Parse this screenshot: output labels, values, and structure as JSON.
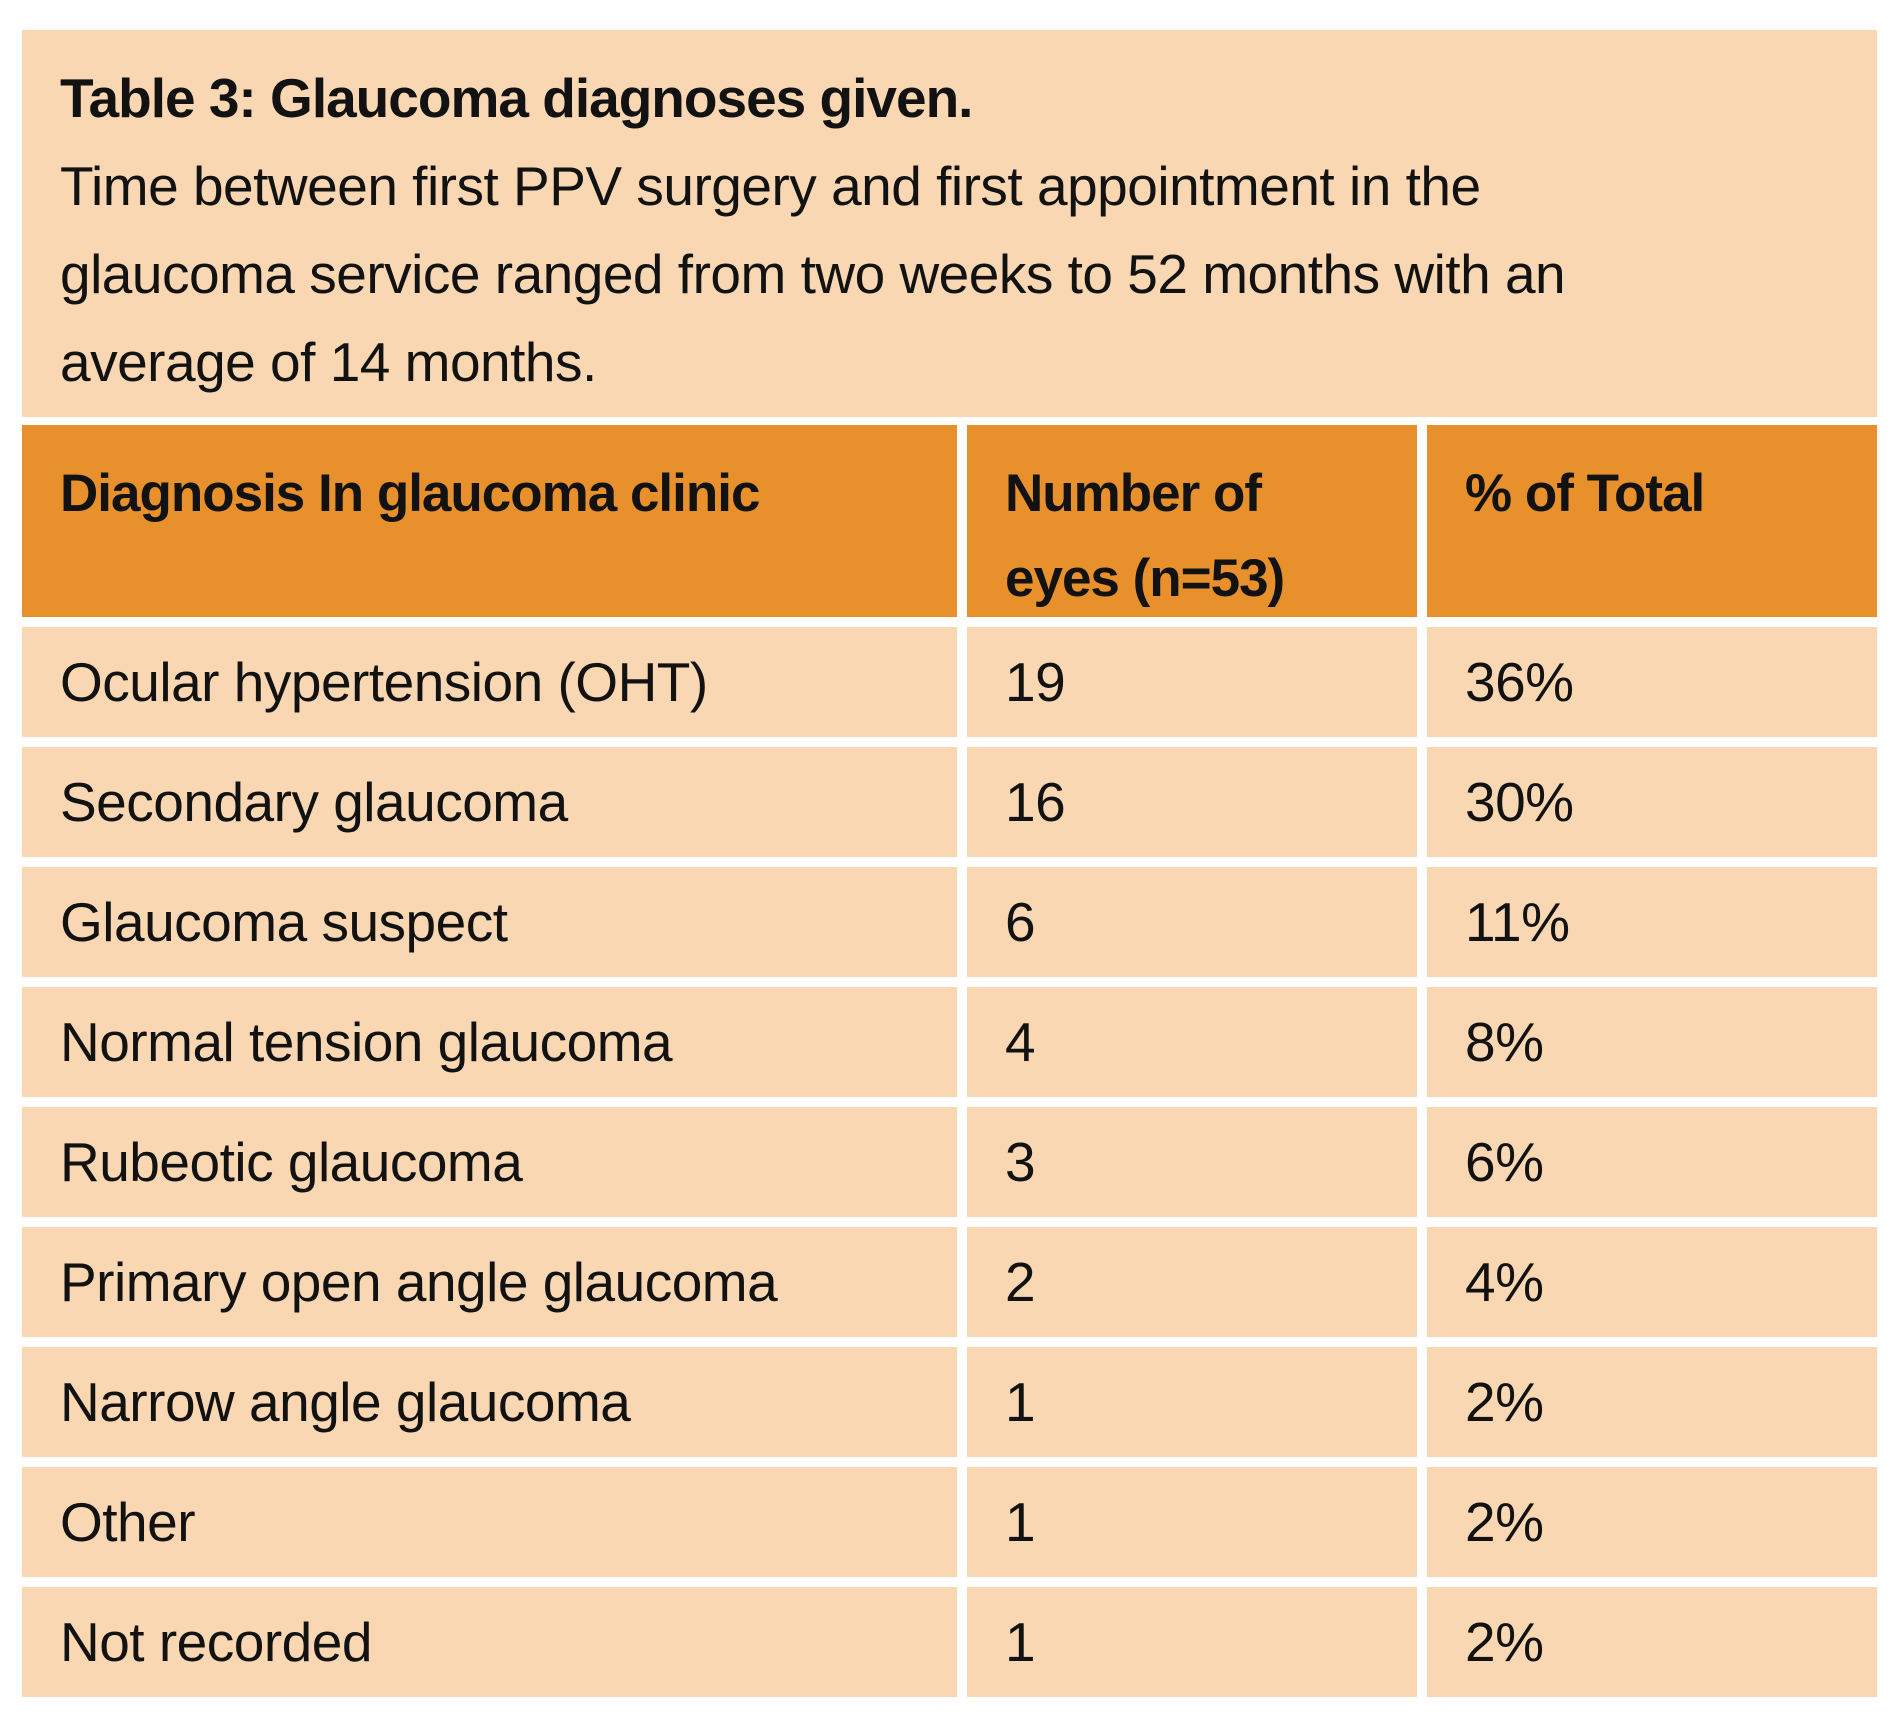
{
  "caption": {
    "title": "Table 3: Glaucoma diagnoses given.",
    "description": "Time between first PPV surgery and first appointment in the\nglaucoma service ranged from two weeks to 52 months with an\naverage of 14 months."
  },
  "colors": {
    "header_bg": "#e8912c",
    "cell_bg": "#f8d7b2",
    "page_bg": "#ffffff",
    "text_color": "#121212"
  },
  "chart_data": {
    "type": "table",
    "title": "Table 3: Glaucoma diagnoses given.",
    "columns": [
      "Diagnosis In glaucoma clinic",
      "Number of\neyes (n=53)",
      "% of Total"
    ],
    "rows": [
      [
        "Ocular hypertension (OHT)",
        "19",
        "36%"
      ],
      [
        "Secondary glaucoma",
        "16",
        "30%"
      ],
      [
        "Glaucoma suspect",
        "6",
        "11%"
      ],
      [
        "Normal tension glaucoma",
        "4",
        "8%"
      ],
      [
        "Rubeotic glaucoma",
        "3",
        "6%"
      ],
      [
        "Primary open angle glaucoma",
        "2",
        "4%"
      ],
      [
        "Narrow angle glaucoma",
        "1",
        "2%"
      ],
      [
        "Other",
        "1",
        "2%"
      ],
      [
        "Not recorded",
        "1",
        "2%"
      ]
    ]
  }
}
